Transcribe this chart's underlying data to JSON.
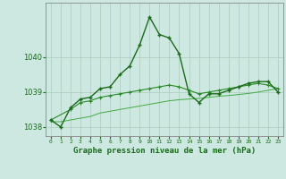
{
  "title": "Graphe pression niveau de la mer (hPa)",
  "bg_color": "#cce8e0",
  "grid_color": "#aaccbb",
  "line1_color": "#1a6b1a",
  "line2_color": "#2a8a2a",
  "line3_color": "#44aa44",
  "x_labels": [
    "0",
    "1",
    "2",
    "3",
    "4",
    "5",
    "6",
    "7",
    "8",
    "9",
    "10",
    "11",
    "12",
    "13",
    "14",
    "15",
    "16",
    "17",
    "18",
    "19",
    "20",
    "21",
    "22",
    "23"
  ],
  "line1_x": [
    0,
    1,
    2,
    3,
    4,
    5,
    6,
    7,
    8,
    9,
    10,
    11,
    12,
    13,
    14,
    15,
    16,
    17,
    18,
    19,
    20,
    21,
    22,
    23
  ],
  "line1_y": [
    1038.2,
    1038.0,
    1038.55,
    1038.8,
    1038.85,
    1039.1,
    1039.15,
    1039.5,
    1039.75,
    1040.35,
    1041.15,
    1040.65,
    1040.55,
    1040.1,
    1038.95,
    1038.7,
    1038.95,
    1038.95,
    1039.05,
    1039.15,
    1039.25,
    1039.3,
    1039.3,
    1039.0
  ],
  "line2_x": [
    0,
    2,
    3,
    4,
    5,
    6,
    7,
    8,
    9,
    10,
    11,
    12,
    13,
    14,
    15,
    16,
    17,
    18,
    19,
    20,
    21,
    22,
    23
  ],
  "line2_y": [
    1038.2,
    1038.5,
    1038.7,
    1038.75,
    1038.85,
    1038.9,
    1038.95,
    1039.0,
    1039.05,
    1039.1,
    1039.15,
    1039.2,
    1039.15,
    1039.05,
    1038.95,
    1039.0,
    1039.05,
    1039.1,
    1039.15,
    1039.2,
    1039.25,
    1039.2,
    1039.1
  ],
  "line3_x": [
    0,
    1,
    2,
    3,
    4,
    5,
    6,
    7,
    8,
    9,
    10,
    11,
    12,
    13,
    14,
    15,
    16,
    17,
    18,
    19,
    20,
    21,
    22,
    23
  ],
  "line3_y": [
    1038.15,
    1038.15,
    1038.2,
    1038.25,
    1038.3,
    1038.4,
    1038.45,
    1038.5,
    1038.55,
    1038.6,
    1038.65,
    1038.7,
    1038.75,
    1038.78,
    1038.8,
    1038.82,
    1038.85,
    1038.88,
    1038.9,
    1038.93,
    1038.96,
    1039.0,
    1039.05,
    1039.1
  ],
  "ylim": [
    1037.75,
    1041.55
  ],
  "yticks": [
    1038,
    1039,
    1040
  ],
  "marker": "+",
  "marker_size": 3,
  "font_family": "monospace"
}
